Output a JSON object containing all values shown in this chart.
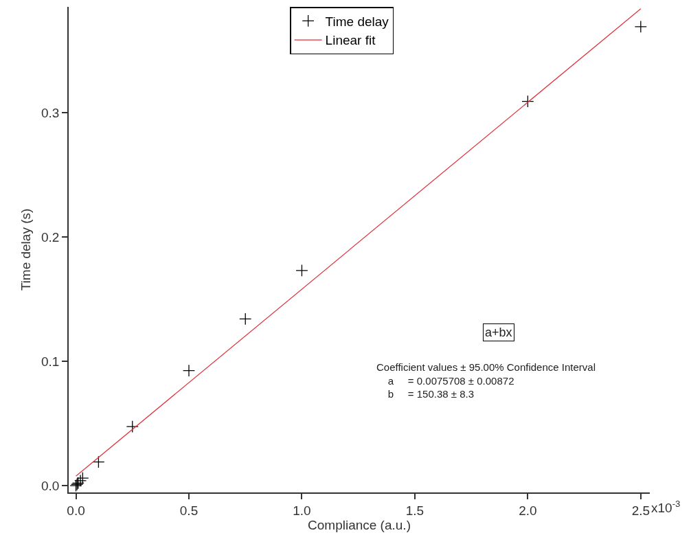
{
  "chart_data": {
    "type": "scatter",
    "xlabel": "Compliance (a.u.)",
    "ylabel": "Time delay (s)",
    "x": [
      0.0,
      0.005,
      0.01,
      0.02,
      0.03,
      0.1,
      0.25,
      0.5,
      0.75,
      1.0,
      2.0,
      2.5
    ],
    "series": [
      {
        "name": "Time delay",
        "color": "#000000",
        "marker": "cross",
        "values": [
          0.0,
          0.001,
          0.002,
          0.004,
          0.006,
          0.019,
          0.0475,
          0.0925,
          0.134,
          0.173,
          0.309,
          0.369
        ]
      },
      {
        "name": "Linear fit",
        "type": "line",
        "color": "#e0303a",
        "marker": "none",
        "line_style": "solid",
        "x": [
          0.0,
          2.5
        ],
        "values": [
          0.0076,
          0.3835
        ]
      }
    ],
    "xlim": [
      -0.032,
      2.54
    ],
    "ylim": [
      -0.0055,
      0.385
    ],
    "xticks": [
      {
        "value": 0.0,
        "label": "0.0"
      },
      0.5,
      {
        "value": 1.0,
        "label": "1.0"
      },
      1.5,
      {
        "value": 2.0,
        "label": "2.0"
      },
      {
        "value": 2.5,
        "label": "2.5"
      }
    ],
    "yticks": [
      {
        "value": 0.0,
        "label": "0.0"
      },
      0.1,
      0.2,
      0.3
    ],
    "legend": "top",
    "annotations": [
      "a+bx",
      "Coefficient values ± 95.00% Confidence Interval\n    a     = 0.0075708 ± 0.00872\n    b     = 150.38 ± 8.3",
      "x10$^{-3}$"
    ]
  }
}
